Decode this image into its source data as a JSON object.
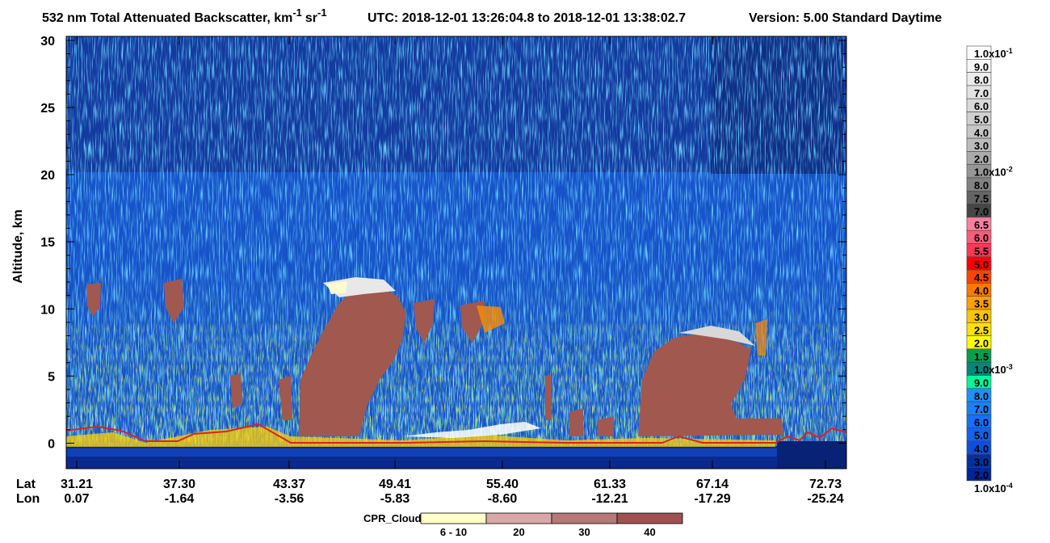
{
  "chart_data": {
    "type": "curtain",
    "title": {
      "main": "532 nm Total Attenuated Backscatter, km",
      "unit_exp": "-1",
      "unit2": "sr",
      "unit2_exp": "-1"
    },
    "time_range": "UTC:  2018-12-01 13:26:04.8  to  2018-12-01 13:38:02.7",
    "version": "Version: 5.00  Standard  Daytime",
    "y_label": "Altitude, km",
    "ylim": [
      -1.9,
      30.3
    ],
    "yticks": [
      0,
      5,
      10,
      15,
      20,
      25,
      30
    ],
    "x_rows": [
      {
        "name": "Lat",
        "labels": [
          "31.21",
          "37.30",
          "43.37",
          "49.41",
          "55.40",
          "61.33",
          "67.14",
          "72.73"
        ]
      },
      {
        "name": "Lon",
        "labels": [
          "0.07",
          "-1.64",
          "-3.56",
          "-5.83",
          "-8.60",
          "-12.21",
          "-17.29",
          "-25.24"
        ]
      }
    ],
    "colorbar": {
      "labels": [
        {
          "text": "1.0x10",
          "sup": "-1"
        },
        "9.0",
        "8.0",
        "7.0",
        "6.0",
        "5.0",
        "4.0",
        "3.0",
        "2.0",
        {
          "text": "1.0x10",
          "sup": "-2"
        },
        "8.0",
        "7.5",
        "7.0",
        "6.5",
        "6.0",
        "5.5",
        "5.0",
        "4.5",
        "4.0",
        "3.5",
        "3.0",
        "2.5",
        "2.0",
        "1.5",
        {
          "text": "1.0x10",
          "sup": "-3"
        },
        "9.0",
        "8.0",
        "7.0",
        "6.0",
        "5.0",
        "4.0",
        "3.0",
        "2.0",
        {
          "text": "1.0x10",
          "sup": "-4"
        }
      ],
      "colors": [
        "#ffffff",
        "#f5f5f5",
        "#ececec",
        "#e2e2e2",
        "#d9d9d9",
        "#d0d0d0",
        "#c6c6c6",
        "#bcbcbc",
        "#aaaaaa",
        "#969696",
        "#828282",
        "#646464",
        "#464646",
        "#ff80a0",
        "#ff5c7c",
        "#ff3858",
        "#ff0000",
        "#ff4400",
        "#ff7a00",
        "#ffa000",
        "#ffc400",
        "#ffe000",
        "#ffff00",
        "#00a050",
        "#00897b",
        "#00fa9a",
        "#1e90ff",
        "#1a80ff",
        "#1670ff",
        "#1064f0",
        "#0a50e0",
        "#0030a0",
        "#00259a"
      ]
    },
    "cloud_mask": {
      "name": "CPR_Cloud_mask",
      "categories": [
        "6 - 10",
        "20",
        "30",
        "40"
      ],
      "colors": [
        "#ffffc8",
        "#d8a8a8",
        "#b87878",
        "#a05050"
      ]
    }
  }
}
